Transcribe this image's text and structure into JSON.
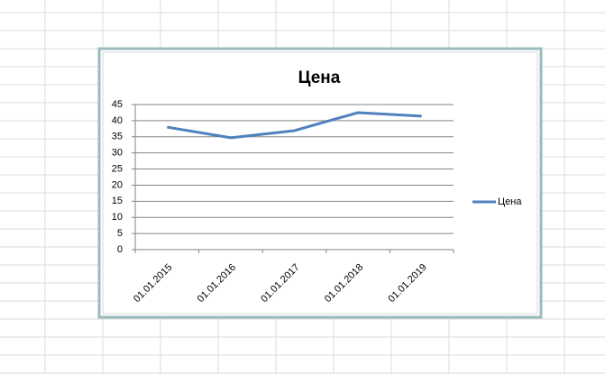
{
  "chart_data": {
    "type": "line",
    "title": "Цена",
    "categories": [
      "01.01.2015",
      "01.01.2016",
      "01.01.2017",
      "01.01.2018",
      "01.01.2019"
    ],
    "series": [
      {
        "name": "Цена",
        "color": "#4f81bd",
        "values": [
          38,
          34.7,
          36.9,
          42.5,
          41.4
        ]
      }
    ],
    "ylim": [
      0,
      45
    ],
    "yticks": [
      0,
      5,
      10,
      15,
      20,
      25,
      30,
      35,
      40,
      45
    ],
    "grid": true,
    "legend": "right"
  }
}
